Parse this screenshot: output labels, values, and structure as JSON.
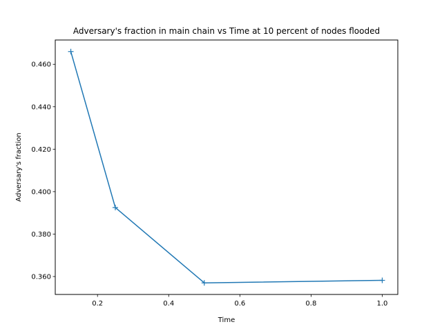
{
  "chart_data": {
    "type": "line",
    "title": "Adversary's fraction in main chain vs Time at 10 percent of nodes flooded",
    "xlabel": "Time",
    "ylabel": "Adversary's fraction",
    "x": [
      0.125,
      0.25,
      0.5,
      1.0
    ],
    "series": [
      {
        "values": [
          0.466,
          0.3925,
          0.357,
          0.3582
        ],
        "color": "#1f77b4",
        "marker": "+"
      }
    ],
    "xlim": [
      0.08125,
      1.04375
    ],
    "ylim": [
      0.35155,
      0.47145
    ],
    "xticks": [
      0.2,
      0.4,
      0.6,
      0.8,
      1.0
    ],
    "xtick_labels": [
      "0.2",
      "0.4",
      "0.6",
      "0.8",
      "1.0"
    ],
    "yticks": [
      0.36,
      0.38,
      0.4,
      0.42,
      0.44,
      0.46
    ],
    "ytick_labels": [
      "0.360",
      "0.380",
      "0.400",
      "0.420",
      "0.440",
      "0.460"
    ],
    "grid": false,
    "legend": "none"
  }
}
